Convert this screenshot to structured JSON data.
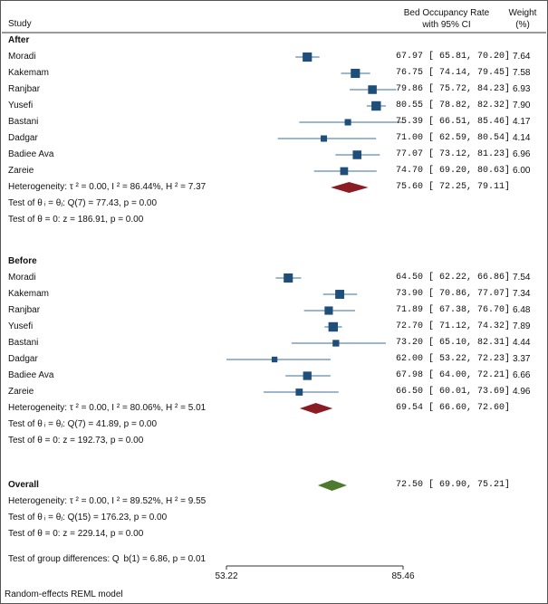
{
  "header": {
    "study": "Study",
    "rate_line1": "Bed Occupancy Rate",
    "rate_line2": "with 95% CI",
    "weight_line1": "Weight",
    "weight_line2": "(%)"
  },
  "footer": {
    "group_diff": "Test of group differences: Q  b(1) = 6.86, p = 0.01",
    "model": "Random-effects REML model"
  },
  "colors": {
    "marker": "#1f4e79",
    "ci": "#3b6e93",
    "subtotal": "#8b1c24",
    "overall": "#4e7a30"
  },
  "chart_data": {
    "type": "forest",
    "xlim": [
      53.22,
      85.46
    ],
    "xticks": [
      "53.22",
      "85.46"
    ],
    "groups": [
      {
        "name": "After",
        "studies": [
          {
            "name": "Moradi",
            "est": 67.97,
            "lo": 65.81,
            "hi": 70.2,
            "ci": "67.97 [ 65.81,  70.20]",
            "w": "7.64"
          },
          {
            "name": "Kakemam",
            "est": 76.75,
            "lo": 74.14,
            "hi": 79.45,
            "ci": "76.75 [ 74.14,  79.45]",
            "w": "7.58"
          },
          {
            "name": "Ranjbar",
            "est": 79.86,
            "lo": 75.72,
            "hi": 84.23,
            "ci": "79.86 [ 75.72,  84.23]",
            "w": "6.93"
          },
          {
            "name": "Yusefi",
            "est": 80.55,
            "lo": 78.82,
            "hi": 82.32,
            "ci": "80.55 [ 78.82,  82.32]",
            "w": "7.90"
          },
          {
            "name": "Bastani",
            "est": 75.39,
            "lo": 66.51,
            "hi": 85.46,
            "ci": "75.39 [ 66.51,  85.46]",
            "w": "4.17"
          },
          {
            "name": "Dadgar",
            "est": 71.0,
            "lo": 62.59,
            "hi": 80.54,
            "ci": "71.00 [ 62.59,  80.54]",
            "w": "4.14"
          },
          {
            "name": "Badiee Ava",
            "est": 77.07,
            "lo": 73.12,
            "hi": 81.23,
            "ci": "77.07 [ 73.12,  81.23]",
            "w": "6.96"
          },
          {
            "name": "Zareie",
            "est": 74.7,
            "lo": 69.2,
            "hi": 80.63,
            "ci": "74.70 [ 69.20,  80.63]",
            "w": "6.00"
          }
        ],
        "summary": {
          "label": "Heterogeneity: τ ² = 0.00, I ² = 86.44%, H ² = 7.37",
          "est": 75.6,
          "lo": 72.25,
          "hi": 79.11,
          "ci": "75.60 [ 72.25,  79.11]"
        },
        "tests": [
          "Test of θ ᵢ = θⱼ: Q(7) = 77.43, p = 0.00",
          "Test of θ = 0: z = 186.91, p = 0.00"
        ]
      },
      {
        "name": "Before",
        "studies": [
          {
            "name": "Moradi",
            "est": 64.5,
            "lo": 62.22,
            "hi": 66.86,
            "ci": "64.50 [ 62.22,  66.86]",
            "w": "7.54"
          },
          {
            "name": "Kakemam",
            "est": 73.9,
            "lo": 70.86,
            "hi": 77.07,
            "ci": "73.90 [ 70.86,  77.07]",
            "w": "7.34"
          },
          {
            "name": "Ranjbar",
            "est": 71.89,
            "lo": 67.38,
            "hi": 76.7,
            "ci": "71.89 [ 67.38,  76.70]",
            "w": "6.48"
          },
          {
            "name": "Yusefi",
            "est": 72.7,
            "lo": 71.12,
            "hi": 74.32,
            "ci": "72.70 [ 71.12,  74.32]",
            "w": "7.89"
          },
          {
            "name": "Bastani",
            "est": 73.2,
            "lo": 65.1,
            "hi": 82.31,
            "ci": "73.20 [ 65.10,  82.31]",
            "w": "4.44"
          },
          {
            "name": "Dadgar",
            "est": 62.0,
            "lo": 53.22,
            "hi": 72.23,
            "ci": "62.00 [ 53.22,  72.23]",
            "w": "3.37"
          },
          {
            "name": "Badiee Ava",
            "est": 67.98,
            "lo": 64.0,
            "hi": 72.21,
            "ci": "67.98 [ 64.00,  72.21]",
            "w": "6.66"
          },
          {
            "name": "Zareie",
            "est": 66.5,
            "lo": 60.01,
            "hi": 73.69,
            "ci": "66.50 [ 60.01,  73.69]",
            "w": "4.96"
          }
        ],
        "summary": {
          "label": "Heterogeneity: τ ² = 0.00, I ² = 80.06%, H ² = 5.01",
          "est": 69.54,
          "lo": 66.6,
          "hi": 72.6,
          "ci": "69.54 [ 66.60,  72.60]"
        },
        "tests": [
          "Test of θ ᵢ = θⱼ: Q(7) = 41.89, p = 0.00",
          "Test of θ = 0: z = 192.73, p = 0.00"
        ]
      }
    ],
    "overall": {
      "name": "Overall",
      "est": 72.5,
      "lo": 69.9,
      "hi": 75.21,
      "ci": "72.50 [ 69.90,  75.21]",
      "label": "Heterogeneity: τ ² = 0.00, I ² = 89.52%, H ² = 9.55",
      "tests": [
        "Test of θ ᵢ = θⱼ: Q(15) = 176.23, p = 0.00",
        "Test of θ = 0: z = 229.14, p = 0.00"
      ]
    }
  }
}
